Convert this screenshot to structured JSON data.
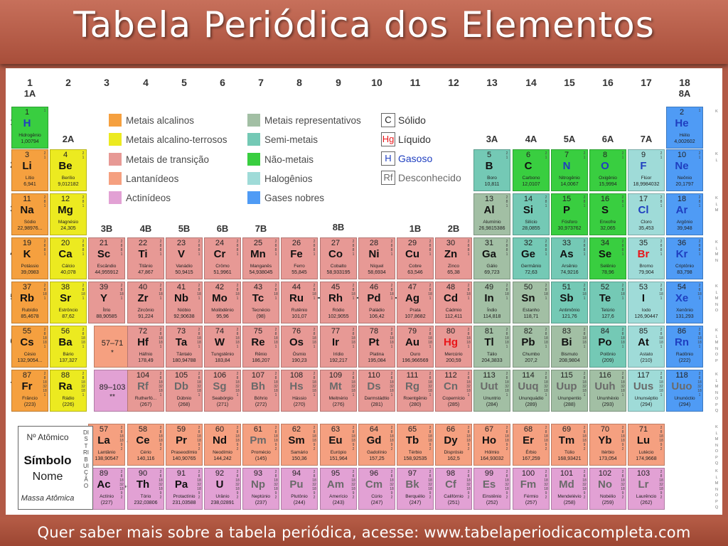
{
  "title": "Tabela Periódica dos Elementos",
  "footer": "Quer saber mais sobre a tabela periódica, acesse: www.tabelaperiodicacompleta.com",
  "colors": {
    "alkali": "#f5a03f",
    "alkaline": "#ecea20",
    "transition": "#e79995",
    "lanthanide": "#f5a080",
    "actinide": "#e2a1d4",
    "representative": "#a2bfa4",
    "semimetal": "#74c9b5",
    "nonmetal": "#39ce40",
    "halogen": "#9fdbd8",
    "noble": "#4f9bf5",
    "gas_text": "#1f3fc0",
    "liquid_text": "#e8161a",
    "unknown_text": "#6a6a6a"
  },
  "groups": [
    "1",
    "2",
    "3",
    "4",
    "5",
    "6",
    "7",
    "8",
    "9",
    "10",
    "11",
    "12",
    "13",
    "14",
    "15",
    "16",
    "17",
    "18"
  ],
  "group_labels": {
    "1A": "1A",
    "2A": "2A",
    "3B": "3B",
    "4B": "4B",
    "5B": "5B",
    "6B": "6B",
    "7B": "7B",
    "8B": "8B",
    "1B": "1B",
    "2B": "2B",
    "3A": "3A",
    "4A": "4A",
    "5A": "5A",
    "6A": "6A",
    "7A": "7A",
    "8A": "8A"
  },
  "periods": [
    "1",
    "2",
    "3",
    "4",
    "5",
    "6",
    "7"
  ],
  "legend": {
    "alkali": "Metais alcalinos",
    "alkaline": "Metais alcalino-terrosos",
    "transition": "Metais de transição",
    "lanthanide": "Lantanídeos",
    "actinide": "Actinídeos",
    "representative": "Metais representativos",
    "semimetal": "Semi-metais",
    "nonmetal": "Não-metais",
    "halogen": "Halogênios",
    "noble": "Gases nobres"
  },
  "states": [
    {
      "symbol": "C",
      "label": "Sólido"
    },
    {
      "symbol": "Hg",
      "label": "Líquido"
    },
    {
      "symbol": "H",
      "label": "Gasoso"
    },
    {
      "symbol": "Rf",
      "label": "Desconhecido"
    }
  ],
  "placeholders": {
    "lan": "57–71",
    "lan_mark": "*",
    "act": "89–103",
    "act_mark": "**"
  },
  "row_marks": {
    "lan": "*",
    "act": "**"
  },
  "reference": {
    "number": "Nº Atômico",
    "symbol": "Símbolo",
    "name": "Nome",
    "mass": "Massa Atômica",
    "side": "DISTRIBUIÇÃO"
  },
  "shell_letters": [
    "K",
    "L",
    "M",
    "N",
    "O",
    "P",
    "Q"
  ],
  "elements": [
    [
      "1",
      "H",
      "Hidrogênio",
      "1,00794",
      "non",
      1,
      1,
      "g"
    ],
    [
      "2",
      "He",
      "Hélio",
      "4,002602",
      "nob",
      1,
      18,
      "g"
    ],
    [
      "3",
      "Li",
      "Lítio",
      "6,941",
      "alk",
      2,
      1,
      "s"
    ],
    [
      "4",
      "Be",
      "Berílio",
      "9,012182",
      "alt",
      2,
      2,
      "s"
    ],
    [
      "5",
      "B",
      "Boro",
      "10,811",
      "semi",
      2,
      13,
      "s"
    ],
    [
      "6",
      "C",
      "Carbono",
      "12,0107",
      "non",
      2,
      14,
      "s"
    ],
    [
      "7",
      "N",
      "Nitrogênio",
      "14,0067",
      "non",
      2,
      15,
      "g"
    ],
    [
      "8",
      "O",
      "Oxigênio",
      "15,9994",
      "non",
      2,
      16,
      "g"
    ],
    [
      "9",
      "F",
      "Flúor",
      "18,9984032",
      "hal",
      2,
      17,
      "g"
    ],
    [
      "10",
      "Ne",
      "Neônio",
      "20,1797",
      "nob",
      2,
      18,
      "g"
    ],
    [
      "11",
      "Na",
      "Sódio",
      "22,98976...",
      "alk",
      3,
      1,
      "s"
    ],
    [
      "12",
      "Mg",
      "Magnésio",
      "24,305",
      "alt",
      3,
      2,
      "s"
    ],
    [
      "13",
      "Al",
      "Alumínio",
      "26,9815386",
      "rep",
      3,
      13,
      "s"
    ],
    [
      "14",
      "Si",
      "Silício",
      "28,0855",
      "semi",
      3,
      14,
      "s"
    ],
    [
      "15",
      "P",
      "Fósforo",
      "30,973762",
      "non",
      3,
      15,
      "s"
    ],
    [
      "16",
      "S",
      "Enxofre",
      "32,065",
      "non",
      3,
      16,
      "s"
    ],
    [
      "17",
      "Cl",
      "Cloro",
      "35,453",
      "hal",
      3,
      17,
      "g"
    ],
    [
      "18",
      "Ar",
      "Argônio",
      "39,948",
      "nob",
      3,
      18,
      "g"
    ],
    [
      "19",
      "K",
      "Potássio",
      "39,0983",
      "alk",
      4,
      1,
      "s"
    ],
    [
      "20",
      "Ca",
      "Cálcio",
      "40,078",
      "alt",
      4,
      2,
      "s"
    ],
    [
      "21",
      "Sc",
      "Escândio",
      "44,955912",
      "tr",
      4,
      3,
      "s"
    ],
    [
      "22",
      "Ti",
      "Titânio",
      "47,867",
      "tr",
      4,
      4,
      "s"
    ],
    [
      "23",
      "V",
      "Vanádio",
      "50,9415",
      "tr",
      4,
      5,
      "s"
    ],
    [
      "24",
      "Cr",
      "Crômo",
      "51,9961",
      "tr",
      4,
      6,
      "s"
    ],
    [
      "25",
      "Mn",
      "Manganês",
      "54,938045",
      "tr",
      4,
      7,
      "s"
    ],
    [
      "26",
      "Fe",
      "Ferro",
      "55,845",
      "tr",
      4,
      8,
      "s"
    ],
    [
      "27",
      "Co",
      "Cobalto",
      "58,933195",
      "tr",
      4,
      9,
      "s"
    ],
    [
      "28",
      "Ni",
      "Níquel",
      "58,6934",
      "tr",
      4,
      10,
      "s"
    ],
    [
      "29",
      "Cu",
      "Cobre",
      "63,546",
      "tr",
      4,
      11,
      "s"
    ],
    [
      "30",
      "Zn",
      "Zinco",
      "65,38",
      "tr",
      4,
      12,
      "s"
    ],
    [
      "31",
      "Ga",
      "Gálio",
      "69,723",
      "rep",
      4,
      13,
      "s"
    ],
    [
      "32",
      "Ge",
      "Germânio",
      "72,63",
      "semi",
      4,
      14,
      "s"
    ],
    [
      "33",
      "As",
      "Arsênio",
      "74,9216",
      "semi",
      4,
      15,
      "s"
    ],
    [
      "34",
      "Se",
      "Selênio",
      "78,96",
      "non",
      4,
      16,
      "s"
    ],
    [
      "35",
      "Br",
      "Bromo",
      "79,904",
      "hal",
      4,
      17,
      "l"
    ],
    [
      "36",
      "Kr",
      "Criptônio",
      "83,798",
      "nob",
      4,
      18,
      "g"
    ],
    [
      "37",
      "Rb",
      "Rubídio",
      "85,4678",
      "alk",
      5,
      1,
      "s"
    ],
    [
      "38",
      "Sr",
      "Estrôncio",
      "87,62",
      "alt",
      5,
      2,
      "s"
    ],
    [
      "39",
      "Y",
      "Ítrio",
      "88,90585",
      "tr",
      5,
      3,
      "s"
    ],
    [
      "40",
      "Zr",
      "Zircônio",
      "91,224",
      "tr",
      5,
      4,
      "s"
    ],
    [
      "41",
      "Nb",
      "Nióbio",
      "92,90638",
      "tr",
      5,
      5,
      "s"
    ],
    [
      "42",
      "Mo",
      "Molibdênio",
      "95,96",
      "tr",
      5,
      6,
      "s"
    ],
    [
      "43",
      "Tc",
      "Tecnécio",
      "(98)",
      "tr",
      5,
      7,
      "s"
    ],
    [
      "44",
      "Ru",
      "Rutênio",
      "101,07",
      "tr",
      5,
      8,
      "s"
    ],
    [
      "45",
      "Rh",
      "Ródio",
      "102,9055",
      "tr",
      5,
      9,
      "s"
    ],
    [
      "46",
      "Pd",
      "Paládio",
      "106,42",
      "tr",
      5,
      10,
      "s"
    ],
    [
      "47",
      "Ag",
      "Prata",
      "107,8682",
      "tr",
      5,
      11,
      "s"
    ],
    [
      "48",
      "Cd",
      "Cádmio",
      "112,411",
      "tr",
      5,
      12,
      "s"
    ],
    [
      "49",
      "In",
      "Índio",
      "114,818",
      "rep",
      5,
      13,
      "s"
    ],
    [
      "50",
      "Sn",
      "Estanho",
      "118,71",
      "rep",
      5,
      14,
      "s"
    ],
    [
      "51",
      "Sb",
      "Antimônio",
      "121,76",
      "semi",
      5,
      15,
      "s"
    ],
    [
      "52",
      "Te",
      "Telúrio",
      "127,6",
      "semi",
      5,
      16,
      "s"
    ],
    [
      "53",
      "I",
      "Iodo",
      "126,90447",
      "hal",
      5,
      17,
      "s"
    ],
    [
      "54",
      "Xe",
      "Xenônio",
      "131,293",
      "nob",
      5,
      18,
      "g"
    ],
    [
      "55",
      "Cs",
      "Césio",
      "132,9054...",
      "alk",
      6,
      1,
      "s"
    ],
    [
      "56",
      "Ba",
      "Bário",
      "137,327",
      "alt",
      6,
      2,
      "s"
    ],
    [
      "72",
      "Hf",
      "Háfnio",
      "178,49",
      "tr",
      6,
      4,
      "s"
    ],
    [
      "73",
      "Ta",
      "Tântalo",
      "180,94788",
      "tr",
      6,
      5,
      "s"
    ],
    [
      "74",
      "W",
      "Tungstênio",
      "183,84",
      "tr",
      6,
      6,
      "s"
    ],
    [
      "75",
      "Re",
      "Rênio",
      "186,207",
      "tr",
      6,
      7,
      "s"
    ],
    [
      "76",
      "Os",
      "Ósmio",
      "190,23",
      "tr",
      6,
      8,
      "s"
    ],
    [
      "77",
      "Ir",
      "Irídio",
      "192,217",
      "tr",
      6,
      9,
      "s"
    ],
    [
      "78",
      "Pt",
      "Platina",
      "195,084",
      "tr",
      6,
      10,
      "s"
    ],
    [
      "79",
      "Au",
      "Ouro",
      "196,966569",
      "tr",
      6,
      11,
      "s"
    ],
    [
      "80",
      "Hg",
      "Mercúrio",
      "200,59",
      "tr",
      6,
      12,
      "l"
    ],
    [
      "81",
      "Tl",
      "Tálio",
      "204,3833",
      "rep",
      6,
      13,
      "s"
    ],
    [
      "82",
      "Pb",
      "Chumbo",
      "207,2",
      "rep",
      6,
      14,
      "s"
    ],
    [
      "83",
      "Bi",
      "Bismuto",
      "208,9804",
      "rep",
      6,
      15,
      "s"
    ],
    [
      "84",
      "Po",
      "Polônio",
      "(209)",
      "semi",
      6,
      16,
      "s"
    ],
    [
      "85",
      "At",
      "Astato",
      "(210)",
      "hal",
      6,
      17,
      "s"
    ],
    [
      "86",
      "Rn",
      "Radônio",
      "(222)",
      "nob",
      6,
      18,
      "g"
    ],
    [
      "87",
      "Fr",
      "Frâncio",
      "(223)",
      "alk",
      7,
      1,
      "s"
    ],
    [
      "88",
      "Ra",
      "Rádio",
      "(226)",
      "alt",
      7,
      2,
      "s"
    ],
    [
      "104",
      "Rf",
      "Rutherfó...",
      "(267)",
      "tr",
      7,
      4,
      "u"
    ],
    [
      "105",
      "Db",
      "Dúbnio",
      "(268)",
      "tr",
      7,
      5,
      "u"
    ],
    [
      "106",
      "Sg",
      "Seabórgio",
      "(271)",
      "tr",
      7,
      6,
      "u"
    ],
    [
      "107",
      "Bh",
      "Bóhrio",
      "(272)",
      "tr",
      7,
      7,
      "u"
    ],
    [
      "108",
      "Hs",
      "Hássio",
      "(270)",
      "tr",
      7,
      8,
      "u"
    ],
    [
      "109",
      "Mt",
      "Meitnério",
      "(276)",
      "tr",
      7,
      9,
      "u"
    ],
    [
      "110",
      "Ds",
      "Darmstádtio",
      "(281)",
      "tr",
      7,
      10,
      "u"
    ],
    [
      "111",
      "Rg",
      "Roentgênio",
      "(280)",
      "tr",
      7,
      11,
      "u"
    ],
    [
      "112",
      "Cn",
      "Copernício",
      "(285)",
      "tr",
      7,
      12,
      "u"
    ],
    [
      "113",
      "Uut",
      "Ununtrio",
      "(284)",
      "rep",
      7,
      13,
      "u"
    ],
    [
      "114",
      "Uuq",
      "Ununquádio",
      "(289)",
      "rep",
      7,
      14,
      "u"
    ],
    [
      "115",
      "Uup",
      "Ununpentio",
      "(288)",
      "rep",
      7,
      15,
      "u"
    ],
    [
      "116",
      "Uuh",
      "Ununhéxio",
      "(293)",
      "rep",
      7,
      16,
      "u"
    ],
    [
      "117",
      "Uus",
      "Ununséptio",
      "(294)",
      "hal",
      7,
      17,
      "u"
    ],
    [
      "118",
      "Uuo",
      "Ununóctio",
      "(294)",
      "nob",
      7,
      18,
      "u"
    ],
    [
      "57",
      "La",
      "Lantânio",
      "138,90547",
      "lan",
      8,
      3,
      "s"
    ],
    [
      "58",
      "Ce",
      "Cério",
      "140,116",
      "lan",
      8,
      4,
      "s"
    ],
    [
      "59",
      "Pr",
      "Praseodímio",
      "140,90765",
      "lan",
      8,
      5,
      "s"
    ],
    [
      "60",
      "Nd",
      "Neodímio",
      "144,242",
      "lan",
      8,
      6,
      "s"
    ],
    [
      "61",
      "Pm",
      "Promécio",
      "(145)",
      "lan",
      8,
      7,
      "u"
    ],
    [
      "62",
      "Sm",
      "Samário",
      "150,36",
      "lan",
      8,
      8,
      "s"
    ],
    [
      "63",
      "Eu",
      "Európio",
      "151,964",
      "lan",
      8,
      9,
      "s"
    ],
    [
      "64",
      "Gd",
      "Gadolínio",
      "157,25",
      "lan",
      8,
      10,
      "s"
    ],
    [
      "65",
      "Tb",
      "Térbio",
      "158,92535",
      "lan",
      8,
      11,
      "s"
    ],
    [
      "66",
      "Dy",
      "Disprósio",
      "162,5",
      "lan",
      8,
      12,
      "s"
    ],
    [
      "67",
      "Ho",
      "Hólmio",
      "164,93032",
      "lan",
      8,
      13,
      "s"
    ],
    [
      "68",
      "Er",
      "Érbio",
      "167,259",
      "lan",
      8,
      14,
      "s"
    ],
    [
      "69",
      "Tm",
      "Túlio",
      "168,93421",
      "lan",
      8,
      15,
      "s"
    ],
    [
      "70",
      "Yb",
      "Itérbio",
      "173,054",
      "lan",
      8,
      16,
      "s"
    ],
    [
      "71",
      "Lu",
      "Lutécio",
      "174,9668",
      "lan",
      8,
      17,
      "s"
    ],
    [
      "89",
      "Ac",
      "Actínio",
      "(227)",
      "act",
      9,
      3,
      "s"
    ],
    [
      "90",
      "Th",
      "Tório",
      "232,03806",
      "act",
      9,
      4,
      "s"
    ],
    [
      "91",
      "Pa",
      "Protactínio",
      "231,03588",
      "act",
      9,
      5,
      "s"
    ],
    [
      "92",
      "U",
      "Urânio",
      "238,02891",
      "act",
      9,
      6,
      "s"
    ],
    [
      "93",
      "Np",
      "Neptúnio",
      "(237)",
      "act",
      9,
      7,
      "u"
    ],
    [
      "94",
      "Pu",
      "Plutônio",
      "(244)",
      "act",
      9,
      8,
      "u"
    ],
    [
      "95",
      "Am",
      "Amerício",
      "(243)",
      "act",
      9,
      9,
      "u"
    ],
    [
      "96",
      "Cm",
      "Cúrio",
      "(247)",
      "act",
      9,
      10,
      "u"
    ],
    [
      "97",
      "Bk",
      "Berquélio",
      "(247)",
      "act",
      9,
      11,
      "u"
    ],
    [
      "98",
      "Cf",
      "Califórnio",
      "(251)",
      "act",
      9,
      12,
      "u"
    ],
    [
      "99",
      "Es",
      "Einstênio",
      "(252)",
      "act",
      9,
      13,
      "u"
    ],
    [
      "100",
      "Fm",
      "Férmio",
      "(257)",
      "act",
      9,
      14,
      "u"
    ],
    [
      "101",
      "Md",
      "Mendelévio",
      "(258)",
      "act",
      9,
      15,
      "u"
    ],
    [
      "102",
      "No",
      "Nobélio",
      "(259)",
      "act",
      9,
      16,
      "u"
    ],
    [
      "103",
      "Lr",
      "Laurêncio",
      "(262)",
      "act",
      9,
      17,
      "u"
    ]
  ]
}
